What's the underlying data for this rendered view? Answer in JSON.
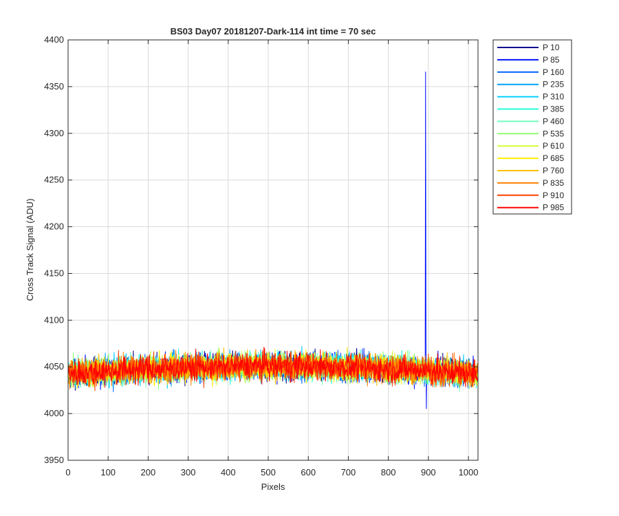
{
  "chart_data": {
    "type": "line",
    "title": "BS03 Day07 20181207-Dark-114 int time = 70 sec",
    "xlabel": "Pixels",
    "ylabel": "Cross Track Signal (ADU)",
    "xlim": [
      0,
      1024
    ],
    "ylim": [
      3950,
      4400
    ],
    "x_ticks": [
      0,
      100,
      200,
      300,
      400,
      500,
      600,
      700,
      800,
      900,
      1000
    ],
    "y_ticks": [
      3950,
      4000,
      4050,
      4100,
      4150,
      4200,
      4250,
      4300,
      4350,
      4400
    ],
    "grid": true,
    "legend_position": "outside-top-right",
    "x_points": 1024,
    "noise": {
      "center_start": 4043,
      "center_mid": 4051,
      "center_end": 4043,
      "amplitude": 13
    },
    "spike": {
      "series": "P 85",
      "x": 893,
      "y": 4366
    },
    "series": [
      {
        "name": "P 10",
        "color": "#00008f"
      },
      {
        "name": "P 85",
        "color": "#0010ff"
      },
      {
        "name": "P 160",
        "color": "#0060ff"
      },
      {
        "name": "P 235",
        "color": "#009fff"
      },
      {
        "name": "P 310",
        "color": "#00cfff"
      },
      {
        "name": "P 385",
        "color": "#20ffdf"
      },
      {
        "name": "P 460",
        "color": "#70ffbf"
      },
      {
        "name": "P 535",
        "color": "#90ff70"
      },
      {
        "name": "P 610",
        "color": "#cfff30"
      },
      {
        "name": "P 685",
        "color": "#ffef00"
      },
      {
        "name": "P 760",
        "color": "#ffbf00"
      },
      {
        "name": "P 835",
        "color": "#ff8000"
      },
      {
        "name": "P 910",
        "color": "#ff4000"
      },
      {
        "name": "P 985",
        "color": "#ff0000"
      }
    ]
  }
}
